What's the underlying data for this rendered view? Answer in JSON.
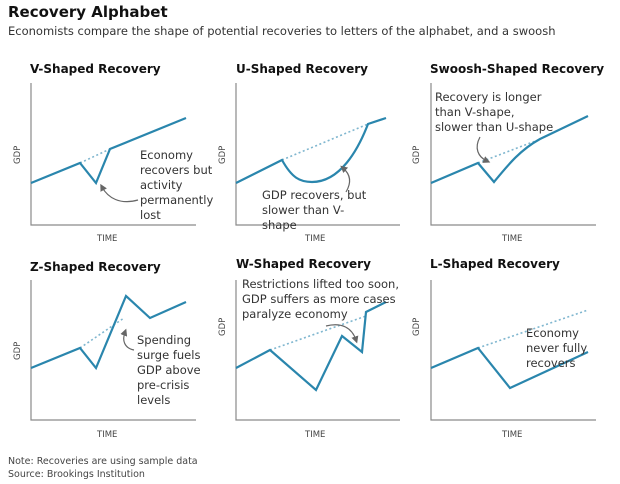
{
  "title": "Recovery Alphabet",
  "subtitle": "Economists compare the shape of potential recoveries to letters of the alphabet, and a swoosh",
  "axis": {
    "x": "TIME",
    "y": "GDP"
  },
  "colors": {
    "line": "#2a86ad",
    "trend": "#7fb6cf",
    "axis": "#8a8a8a",
    "arrow": "#666666"
  },
  "panels": [
    {
      "title": "V-Shaped Recovery",
      "annotation": "Economy recovers but activity permanently lost"
    },
    {
      "title": "U-Shaped Recovery",
      "annotation": "GDP recovers, but slower than V-shape"
    },
    {
      "title": "Swoosh-Shaped Recovery",
      "annotation": "Recovery is longer than V-shape, slower than U-shape"
    },
    {
      "title": "Z-Shaped Recovery",
      "annotation": "Spending surge fuels GDP above pre-crisis levels"
    },
    {
      "title": "W-Shaped Recovery",
      "annotation": "Restrictions lifted too soon, GDP suffers as more cases paralyze economy"
    },
    {
      "title": "L-Shaped Recovery",
      "annotation": "Economy never fully recovers"
    }
  ],
  "footer": {
    "note": "Note: Recoveries are using sample data",
    "source": "Source: Brookings Institution"
  }
}
